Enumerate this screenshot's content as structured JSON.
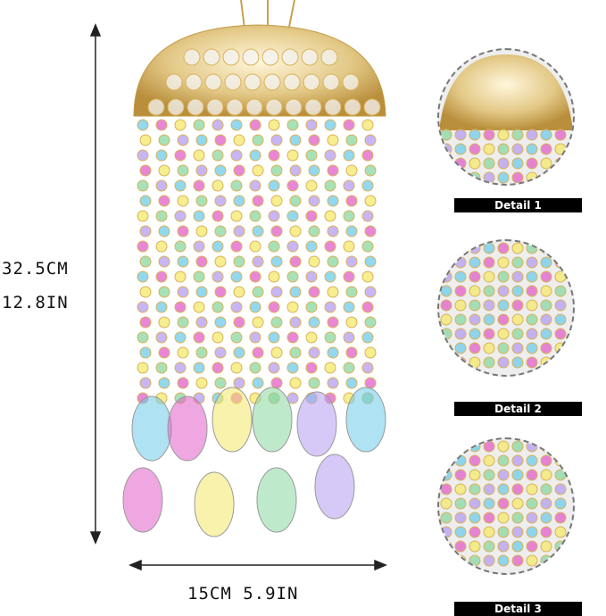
{
  "dimensions": {
    "height_cm": "32.5CM",
    "height_in": "12.8IN",
    "width": "15CM 5.9IN"
  },
  "details": [
    {
      "label": "Detail 1"
    },
    {
      "label": "Detail 2"
    },
    {
      "label": "Detail 3"
    }
  ],
  "colors": {
    "gold": "#d9b25a",
    "label_bg": "#000000",
    "crystal_tints": [
      "#6ecbe8",
      "#e25fc8",
      "#f3e86a",
      "#8ad7a0",
      "#b59cf0"
    ]
  }
}
